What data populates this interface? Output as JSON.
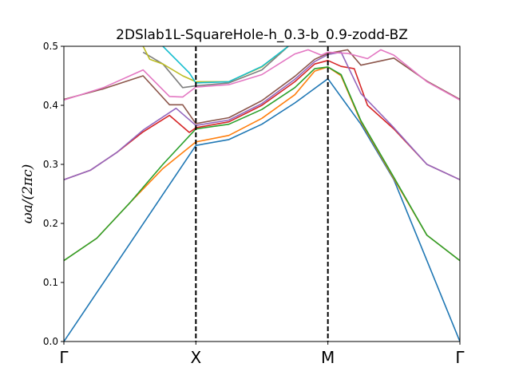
{
  "chart_data": {
    "type": "line",
    "title": "2DSlab1L-SquareHole-h_0.3-b_0.9-zodd-BZ",
    "xlabel": "",
    "ylabel": "ωa/(2πc)",
    "ylim": [
      0,
      0.5
    ],
    "yticks": [
      "0.0",
      "0.1",
      "0.2",
      "0.3",
      "0.4",
      "0.5"
    ],
    "xlim": [
      0,
      3
    ],
    "x_tick_positions": [
      0,
      1,
      2,
      3
    ],
    "x_tick_labels": [
      "Γ",
      "X",
      "M",
      "Γ"
    ],
    "symmetry_lines": [
      1,
      2
    ],
    "grid": false,
    "legend": "none",
    "series": [
      {
        "color": "#1f77b4",
        "points": [
          [
            0,
            0
          ],
          [
            0.25,
            0.083
          ],
          [
            0.5,
            0.166
          ],
          [
            0.75,
            0.249
          ],
          [
            1,
            0.332
          ],
          [
            1.25,
            0.342
          ],
          [
            1.5,
            0.368
          ],
          [
            1.75,
            0.404
          ],
          [
            2,
            0.445
          ],
          [
            2.25,
            0.368
          ],
          [
            2.5,
            0.274
          ],
          [
            2.75,
            0.137
          ],
          [
            3,
            0
          ]
        ]
      },
      {
        "color": "#ff7f0e",
        "points": [
          [
            0,
            0.137
          ],
          [
            0.25,
            0.175
          ],
          [
            0.5,
            0.235
          ],
          [
            0.75,
            0.293
          ],
          [
            1,
            0.338
          ],
          [
            1.25,
            0.349
          ],
          [
            1.5,
            0.378
          ],
          [
            1.75,
            0.418
          ],
          [
            1.9,
            0.458
          ],
          [
            2,
            0.465
          ],
          [
            2.1,
            0.45
          ],
          [
            2.25,
            0.372
          ],
          [
            2.5,
            0.276
          ],
          [
            2.75,
            0.18
          ],
          [
            3,
            0.137
          ]
        ]
      },
      {
        "color": "#2ca02c",
        "points": [
          [
            0,
            0.137
          ],
          [
            0.25,
            0.175
          ],
          [
            0.5,
            0.235
          ],
          [
            0.75,
            0.3
          ],
          [
            1,
            0.36
          ],
          [
            1.25,
            0.368
          ],
          [
            1.5,
            0.393
          ],
          [
            1.75,
            0.43
          ],
          [
            1.9,
            0.462
          ],
          [
            2,
            0.465
          ],
          [
            2.1,
            0.452
          ],
          [
            2.25,
            0.374
          ],
          [
            2.5,
            0.278
          ],
          [
            2.75,
            0.18
          ],
          [
            3,
            0.137
          ]
        ]
      },
      {
        "color": "#d62728",
        "points": [
          [
            0,
            0.274
          ],
          [
            0.2,
            0.29
          ],
          [
            0.4,
            0.32
          ],
          [
            0.6,
            0.355
          ],
          [
            0.8,
            0.383
          ],
          [
            0.95,
            0.354
          ],
          [
            1,
            0.362
          ],
          [
            1.25,
            0.372
          ],
          [
            1.5,
            0.4
          ],
          [
            1.75,
            0.44
          ],
          [
            1.9,
            0.47
          ],
          [
            2,
            0.476
          ],
          [
            2.1,
            0.466
          ],
          [
            2.2,
            0.462
          ],
          [
            2.3,
            0.4
          ],
          [
            2.5,
            0.36
          ],
          [
            2.75,
            0.3
          ],
          [
            3,
            0.274
          ]
        ]
      },
      {
        "color": "#9467bd",
        "points": [
          [
            0,
            0.274
          ],
          [
            0.2,
            0.29
          ],
          [
            0.4,
            0.32
          ],
          [
            0.6,
            0.358
          ],
          [
            0.85,
            0.395
          ],
          [
            1,
            0.366
          ],
          [
            1.25,
            0.375
          ],
          [
            1.5,
            0.403
          ],
          [
            1.75,
            0.444
          ],
          [
            1.9,
            0.474
          ],
          [
            2,
            0.486
          ],
          [
            2.1,
            0.49
          ],
          [
            2.25,
            0.42
          ],
          [
            2.5,
            0.362
          ],
          [
            2.75,
            0.3
          ],
          [
            3,
            0.274
          ]
        ]
      },
      {
        "color": "#8c564b",
        "points": [
          [
            0,
            0.41
          ],
          [
            0.3,
            0.428
          ],
          [
            0.6,
            0.45
          ],
          [
            0.8,
            0.401
          ],
          [
            0.9,
            0.401
          ],
          [
            1,
            0.369
          ],
          [
            1.25,
            0.379
          ],
          [
            1.5,
            0.408
          ],
          [
            1.75,
            0.449
          ],
          [
            1.9,
            0.478
          ],
          [
            2,
            0.488
          ],
          [
            2.15,
            0.494
          ],
          [
            2.25,
            0.468
          ],
          [
            2.5,
            0.48
          ],
          [
            2.75,
            0.441
          ],
          [
            3,
            0.41
          ]
        ]
      },
      {
        "color": "#e377c2",
        "points": [
          [
            0,
            0.409
          ],
          [
            0.3,
            0.43
          ],
          [
            0.6,
            0.46
          ],
          [
            0.8,
            0.415
          ],
          [
            0.9,
            0.414
          ],
          [
            1,
            0.431
          ],
          [
            1.25,
            0.435
          ],
          [
            1.5,
            0.452
          ],
          [
            1.75,
            0.487
          ],
          [
            1.85,
            0.494
          ],
          [
            1.95,
            0.485
          ],
          [
            2,
            0.49
          ],
          [
            2.15,
            0.488
          ],
          [
            2.3,
            0.479
          ],
          [
            2.4,
            0.494
          ],
          [
            2.5,
            0.485
          ],
          [
            2.75,
            0.44
          ],
          [
            3,
            0.409
          ]
        ]
      },
      {
        "color": "#7f7f7f",
        "points": [
          [
            0.6,
            0.49
          ],
          [
            0.75,
            0.47
          ],
          [
            0.9,
            0.43
          ],
          [
            1,
            0.433
          ],
          [
            1.25,
            0.438
          ],
          [
            1.5,
            0.46
          ],
          [
            1.7,
            0.5
          ]
        ]
      },
      {
        "color": "#bcbd22",
        "points": [
          [
            0.6,
            0.5
          ],
          [
            0.65,
            0.478
          ],
          [
            0.75,
            0.47
          ],
          [
            0.9,
            0.45
          ],
          [
            1,
            0.44
          ],
          [
            1.25,
            0.44
          ],
          [
            1.5,
            0.465
          ],
          [
            1.7,
            0.5
          ]
        ]
      },
      {
        "color": "#17becf",
        "points": [
          [
            0.75,
            0.5
          ],
          [
            0.95,
            0.455
          ],
          [
            1,
            0.438
          ],
          [
            1.25,
            0.44
          ],
          [
            1.5,
            0.466
          ],
          [
            1.7,
            0.5
          ]
        ]
      }
    ]
  }
}
